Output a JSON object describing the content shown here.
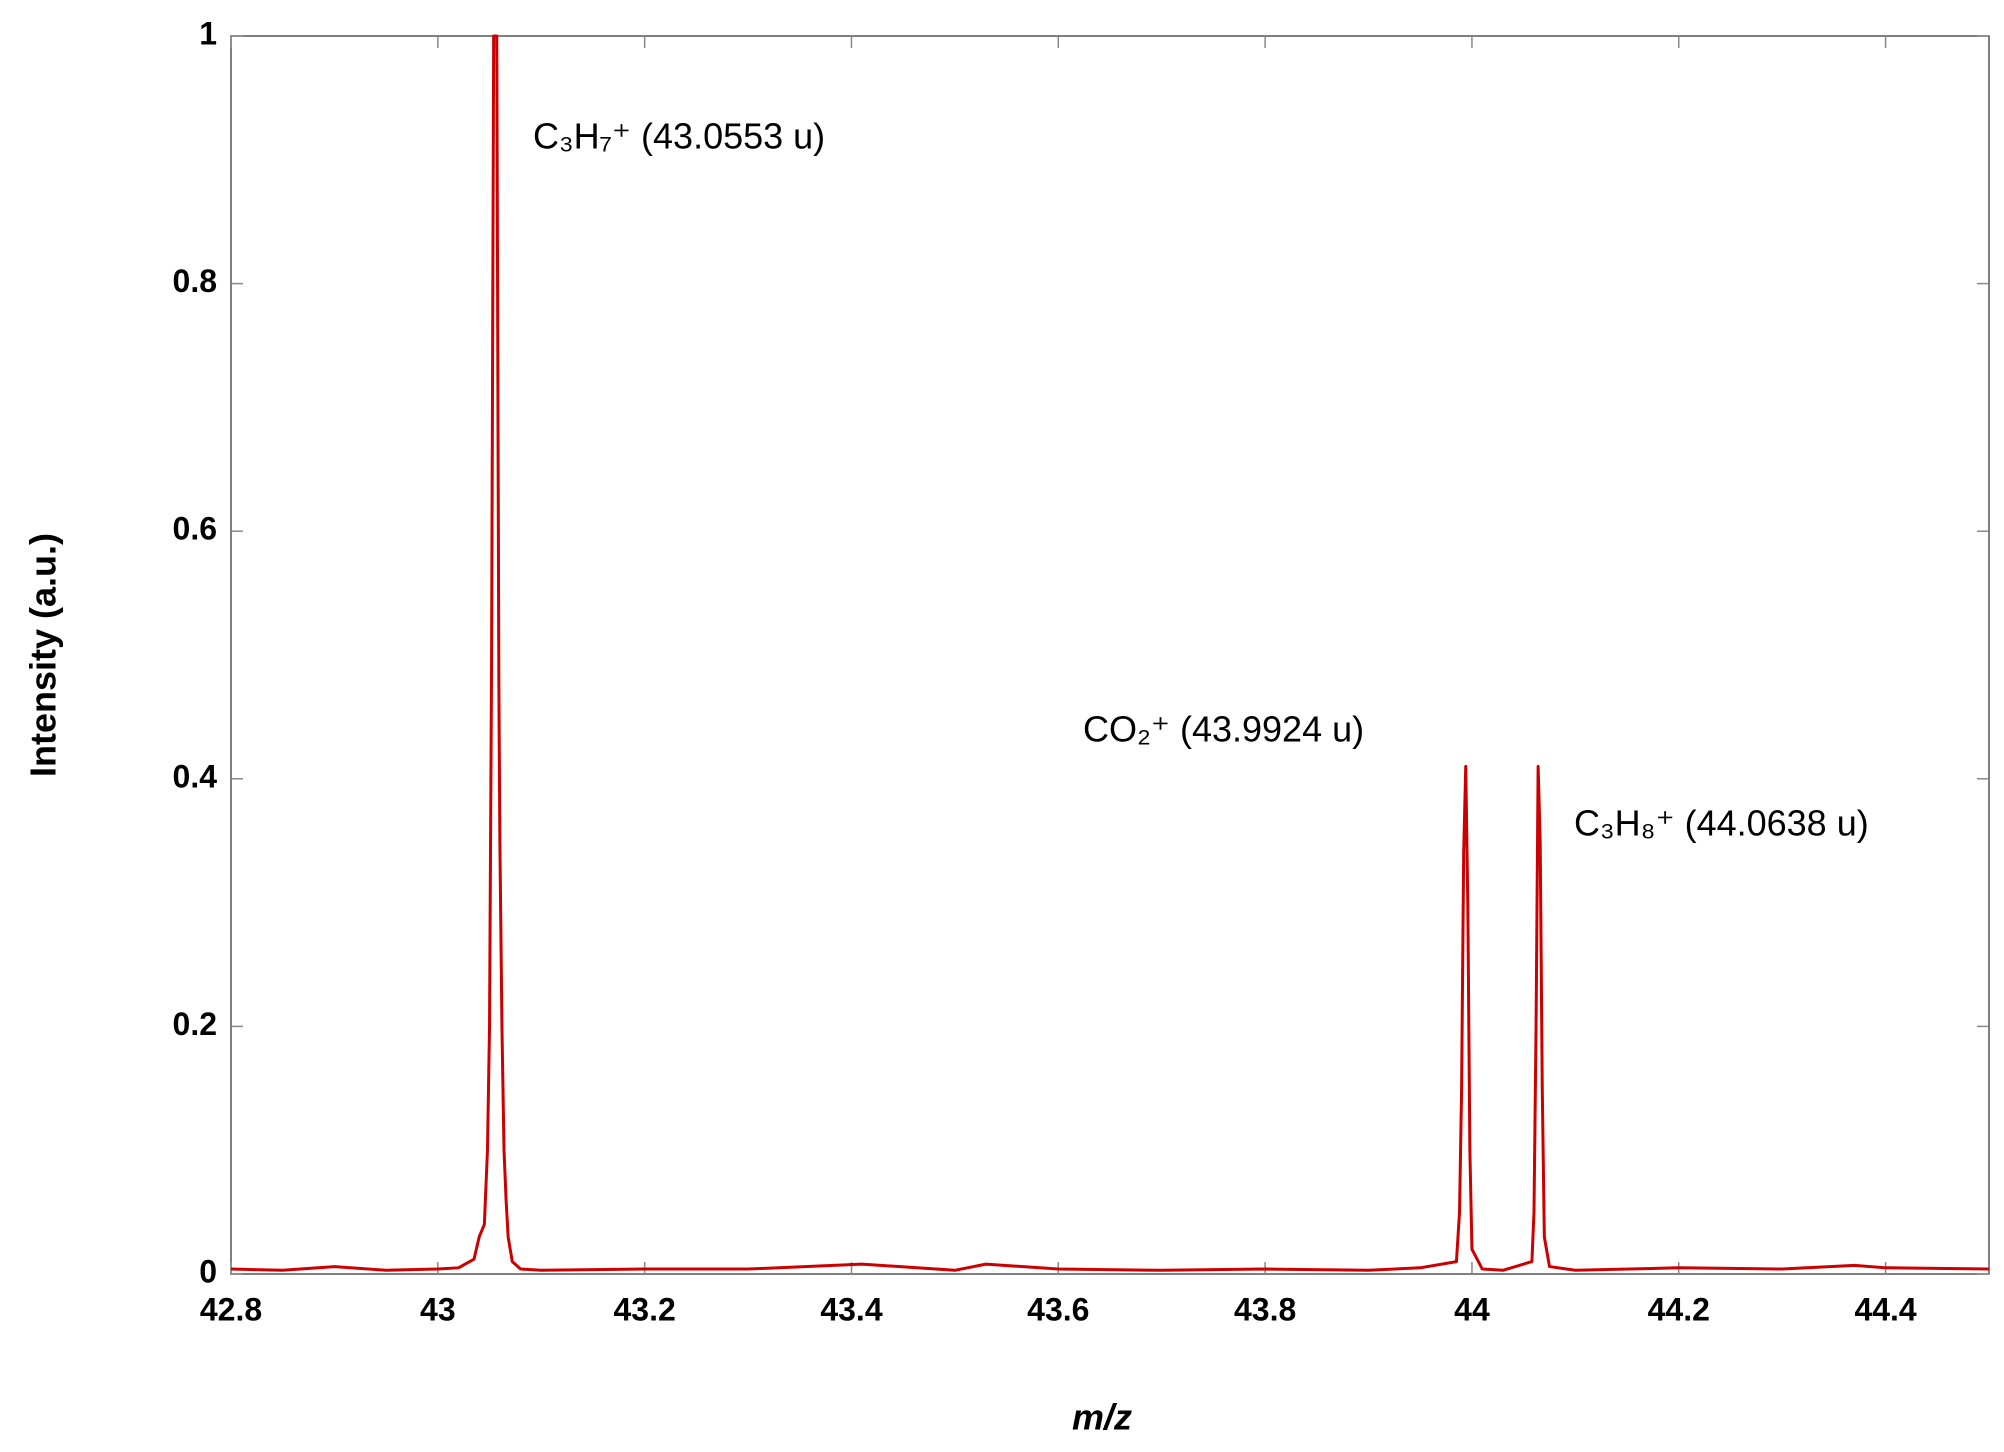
{
  "chart_data": {
    "type": "line",
    "xlabel": "m/z",
    "ylabel": "Intensity (a.u.)",
    "x": [
      42.8,
      42.85,
      42.9,
      42.95,
      43.0,
      43.02,
      43.035,
      43.04,
      43.045,
      43.048,
      43.05,
      43.052,
      43.054,
      43.057,
      43.059,
      43.06,
      43.062,
      43.064,
      43.066,
      43.068,
      43.072,
      43.08,
      43.1,
      43.2,
      43.3,
      43.41,
      43.5,
      43.53,
      43.6,
      43.7,
      43.8,
      43.9,
      43.95,
      43.985,
      43.988,
      43.99,
      43.992,
      43.994,
      43.996,
      43.998,
      44.0,
      44.01,
      44.03,
      44.058,
      44.06,
      44.062,
      44.064,
      44.066,
      44.068,
      44.07,
      44.075,
      44.1,
      44.2,
      44.3,
      44.37,
      44.4,
      44.5
    ],
    "series": [
      {
        "color": "#cc0000",
        "values": [
          0.004,
          0.003,
          0.006,
          0.003,
          0.004,
          0.005,
          0.012,
          0.03,
          0.04,
          0.1,
          0.2,
          0.5,
          1,
          1,
          0.48,
          0.35,
          0.2,
          0.1,
          0.06,
          0.03,
          0.01,
          0.004,
          0.003,
          0.004,
          0.004,
          0.008,
          0.003,
          0.008,
          0.004,
          0.003,
          0.004,
          0.003,
          0.005,
          0.01,
          0.05,
          0.15,
          0.34,
          0.41,
          0.3,
          0.1,
          0.02,
          0.004,
          0.003,
          0.01,
          0.05,
          0.2,
          0.41,
          0.35,
          0.15,
          0.03,
          0.006,
          0.003,
          0.005,
          0.004,
          0.007,
          0.005,
          0.004
        ]
      }
    ],
    "xlim": [
      42.8,
      44.5
    ],
    "ylim": [
      0,
      1
    ],
    "xticks": [
      42.8,
      43,
      43.2,
      43.4,
      43.6,
      43.8,
      44,
      44.2,
      44.4
    ],
    "yticks": [
      0,
      0.2,
      0.4,
      0.6,
      0.8,
      1
    ],
    "annotations": [
      "C₃H₇⁺ (43.0553 u)",
      "CO₂⁺ (43.9924 u)",
      "C₃H₈⁺ (44.0638 u)"
    ]
  }
}
